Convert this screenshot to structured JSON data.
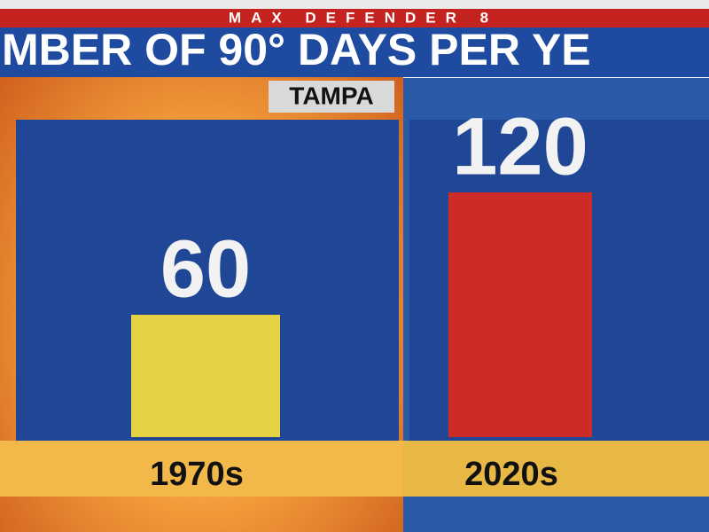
{
  "header": "MAX DEFENDER 8",
  "chart_data": {
    "type": "bar",
    "title": "MBER OF 90° DAYS PER YE",
    "subtitle": "TAMPA",
    "categories": [
      "1970s",
      "2020s"
    ],
    "values": [
      60,
      120
    ],
    "colors": [
      "#e6d345",
      "#cc2b27"
    ]
  }
}
